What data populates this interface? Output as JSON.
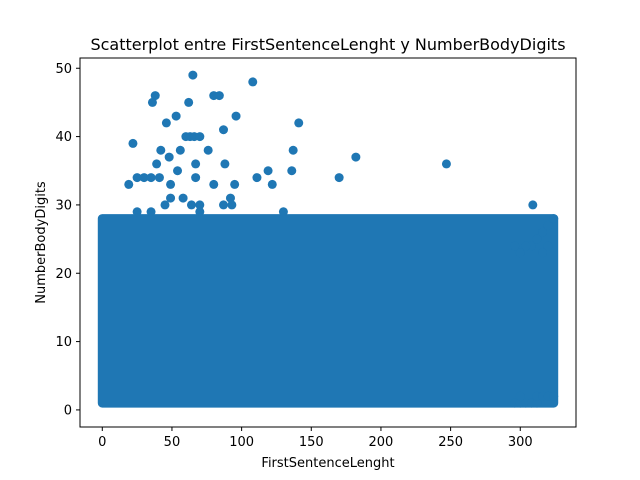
{
  "chart_data": {
    "type": "scatter",
    "title": "Scatterplot entre FirstSentenceLenght y NumberBodyDigits",
    "xlabel": "FirstSentenceLenght",
    "ylabel": "NumberBodyDigits",
    "xlim": [
      -16,
      340
    ],
    "ylim": [
      -2.5,
      51.5
    ],
    "xticks": [
      0,
      50,
      100,
      150,
      200,
      250,
      300
    ],
    "yticks": [
      0,
      10,
      20,
      30,
      40,
      50
    ],
    "grid": false,
    "legend": "none",
    "marker_color": "#1f77b4",
    "dense_region": {
      "x_range": [
        0,
        324
      ],
      "y_range": [
        1,
        28
      ]
    },
    "extra_dense_points": [
      [
        296,
        1
      ],
      [
        300,
        1
      ],
      [
        304,
        1
      ],
      [
        308,
        1
      ],
      [
        312,
        1
      ],
      [
        300,
        2
      ],
      [
        312,
        2
      ],
      [
        316,
        2
      ],
      [
        320,
        2
      ],
      [
        324,
        2
      ],
      [
        308,
        24
      ],
      [
        312,
        25
      ],
      [
        316,
        26
      ],
      [
        320,
        27
      ],
      [
        324,
        28
      ],
      [
        300,
        23
      ],
      [
        304,
        24
      ],
      [
        296,
        24
      ],
      [
        316,
        23
      ],
      [
        320,
        24
      ]
    ],
    "points": [
      [
        65,
        49
      ],
      [
        108,
        48
      ],
      [
        38,
        46
      ],
      [
        80,
        46
      ],
      [
        84,
        46
      ],
      [
        36,
        45
      ],
      [
        62,
        45
      ],
      [
        53,
        43
      ],
      [
        96,
        43
      ],
      [
        46,
        42
      ],
      [
        141,
        42
      ],
      [
        87,
        41
      ],
      [
        60,
        40
      ],
      [
        63,
        40
      ],
      [
        66,
        40
      ],
      [
        70,
        40
      ],
      [
        22,
        39
      ],
      [
        42,
        38
      ],
      [
        56,
        38
      ],
      [
        76,
        38
      ],
      [
        137,
        38
      ],
      [
        39,
        36
      ],
      [
        67,
        36
      ],
      [
        88,
        36
      ],
      [
        247,
        36
      ],
      [
        48,
        37
      ],
      [
        182,
        37
      ],
      [
        54,
        35
      ],
      [
        119,
        35
      ],
      [
        136,
        35
      ],
      [
        25,
        34
      ],
      [
        30,
        34
      ],
      [
        35,
        34
      ],
      [
        41,
        34
      ],
      [
        67,
        34
      ],
      [
        111,
        34
      ],
      [
        170,
        34
      ],
      [
        19,
        33
      ],
      [
        49,
        33
      ],
      [
        80,
        33
      ],
      [
        95,
        33
      ],
      [
        122,
        33
      ],
      [
        49,
        31
      ],
      [
        58,
        31
      ],
      [
        92,
        31
      ],
      [
        45,
        30
      ],
      [
        64,
        30
      ],
      [
        70,
        30
      ],
      [
        87,
        30
      ],
      [
        93,
        30
      ],
      [
        309,
        30
      ],
      [
        25,
        29
      ],
      [
        35,
        29
      ],
      [
        70,
        29
      ],
      [
        130,
        29
      ]
    ]
  }
}
